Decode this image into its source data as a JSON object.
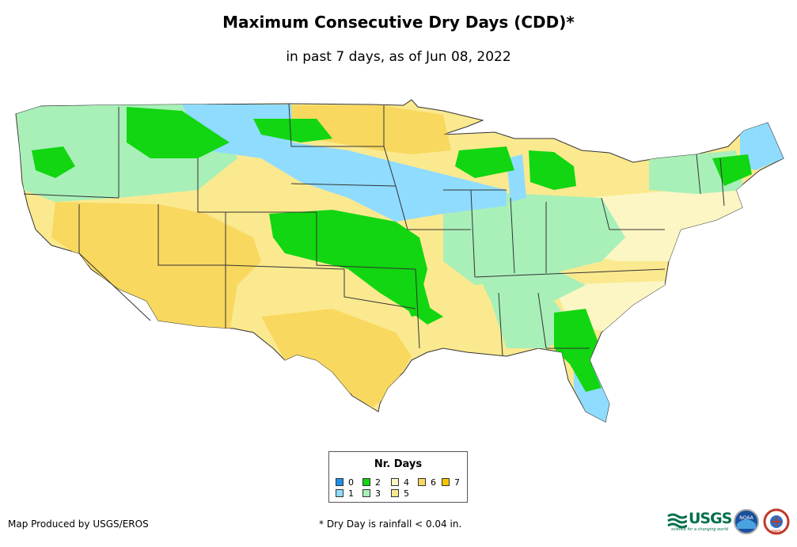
{
  "title": "Maximum Consecutive Dry Days (CDD)*",
  "subtitle": "in past 7 days, as of Jun 08, 2022",
  "legend": {
    "title": "Nr. Days",
    "items": [
      {
        "label": "0",
        "color": "#1e90e8"
      },
      {
        "label": "1",
        "color": "#8fdcff"
      },
      {
        "label": "2",
        "color": "#11d611"
      },
      {
        "label": "3",
        "color": "#a8f0b8"
      },
      {
        "label": "4",
        "color": "#fbf6c4"
      },
      {
        "label": "5",
        "color": "#fbe98f"
      },
      {
        "label": "6",
        "color": "#f8d85e"
      },
      {
        "label": "7",
        "color": "#f5c400"
      }
    ]
  },
  "footer": {
    "credit": "Map Produced by USGS/EROS",
    "note": "* Dry Day is rainfall < 0.04 in."
  },
  "logos": {
    "usgs": "USGS",
    "usgs_tagline": "science for a changing world",
    "noaa": "NOAA",
    "nws": "NWS"
  }
}
